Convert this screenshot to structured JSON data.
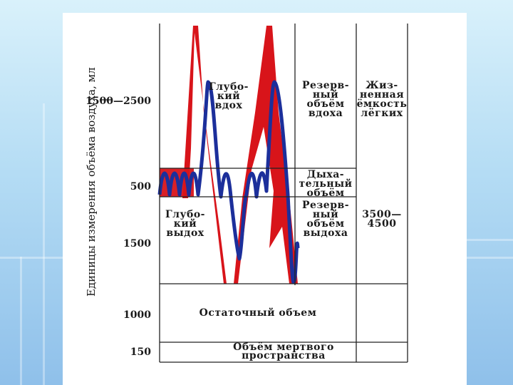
{
  "y_axis_label": "Единицы измерения объёма воздуха, мл",
  "tick_labels": {
    "t1": "1500—2500",
    "t2": "500",
    "t3": "1500",
    "t4": "1000",
    "t5": "150"
  },
  "labels": {
    "deep_inhale": "Глубо-\nкий\nвдох",
    "deep_exhale": "Глубо-\nкий\nвыдох",
    "inspiratory_reserve": "Резерв-\nный\nобъём\nвдоха",
    "tidal_volume": "Дыха-\nтельный\nобъём",
    "expiratory_reserve": "Резерв-\nный\nобъём\nвыдоха",
    "vital_capacity": "Жиз-\nненная\nёмкость\nлёгких",
    "vital_capacity_value": "3500—\n4500",
    "residual_volume": "Остаточный объем",
    "dead_space": "Объём мертвого\nпространства"
  },
  "colors": {
    "slide_bg": "#ffffff",
    "grid": "#222222",
    "red_curve": "#d8141a",
    "blue_curve": "#1c2f9b"
  }
}
